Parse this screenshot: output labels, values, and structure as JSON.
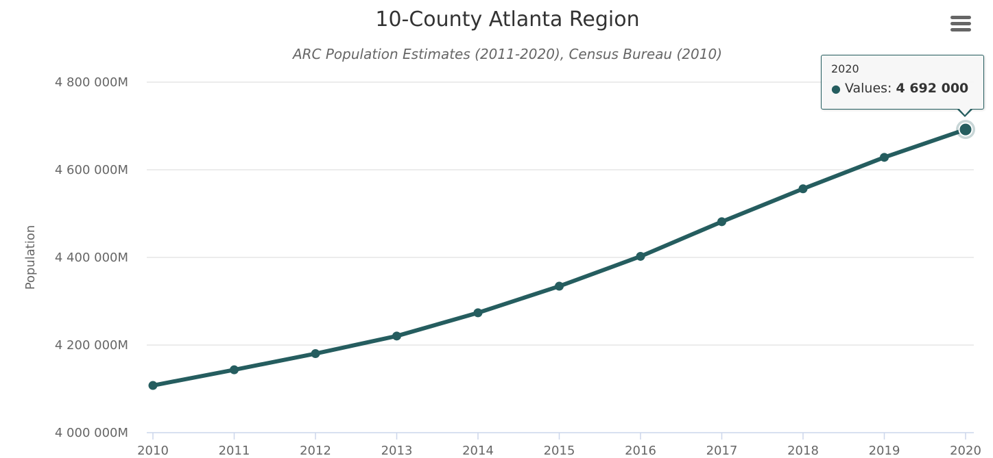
{
  "colors": {
    "series": "#255d5f",
    "grid": "#e6e6e6",
    "text": "#333333",
    "muted": "#666666"
  },
  "menu": {
    "icon": "hamburger-menu-icon"
  },
  "tooltip": {
    "header": "2020",
    "series_label": "Values:",
    "value": "4 692 000",
    "dot": "●"
  },
  "chart_data": {
    "type": "line",
    "title": "10-County Atlanta Region",
    "subtitle": "ARC Population Estimates (2011-2020), Census Bureau (2010)",
    "xlabel": "",
    "ylabel": "Population",
    "categories": [
      "2010",
      "2011",
      "2012",
      "2013",
      "2014",
      "2015",
      "2016",
      "2017",
      "2018",
      "2019",
      "2020"
    ],
    "series": [
      {
        "name": "Values",
        "values": [
          4107750,
          4143500,
          4180400,
          4220600,
          4273600,
          4334300,
          4402400,
          4481500,
          4556600,
          4628400,
          4692000
        ]
      }
    ],
    "ylim": [
      4000000,
      4800000
    ],
    "yticks": [
      4000000,
      4200000,
      4400000,
      4600000,
      4800000
    ],
    "ytick_labels": [
      "4 000 000M",
      "4 200 000M",
      "4 400 000M",
      "4 600 000M",
      "4 800 000M"
    ],
    "highlighted_point": "2020",
    "grid": true,
    "legend": "none"
  }
}
